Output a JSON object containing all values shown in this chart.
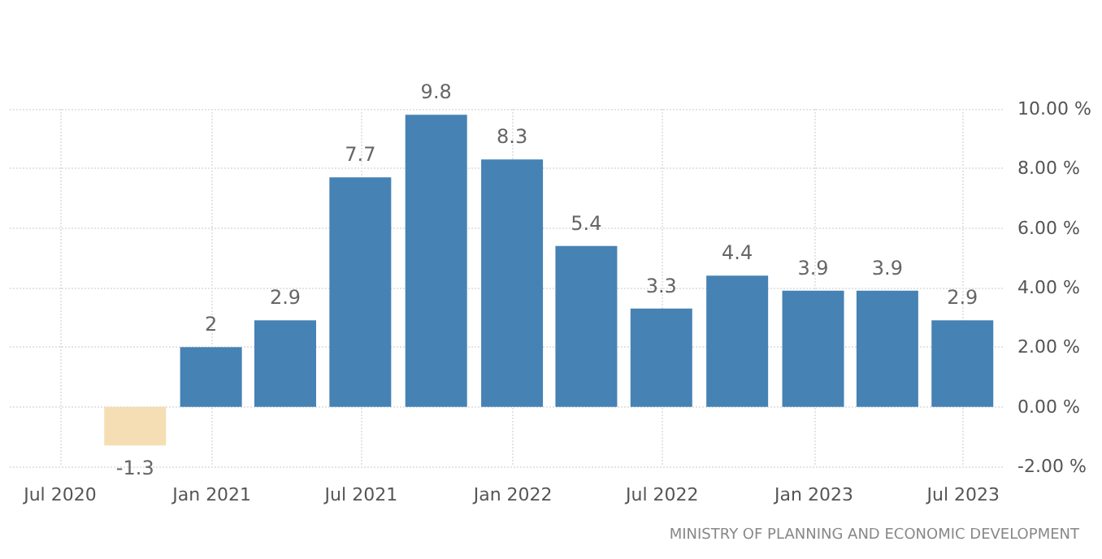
{
  "chart_data": {
    "type": "bar",
    "x": [
      "2020-09-30",
      "2020-12-31",
      "2021-03-31",
      "2021-06-30",
      "2021-09-30",
      "2021-12-31",
      "2022-03-31",
      "2022-06-30",
      "2022-09-30",
      "2022-12-31",
      "2023-03-31",
      "2023-06-30"
    ],
    "values": [
      -1.3,
      2,
      2.9,
      7.7,
      9.8,
      8.3,
      5.4,
      3.3,
      4.4,
      3.9,
      3.9,
      2.9
    ],
    "colors": [
      "#f5deb3",
      "#4682b4",
      "#4682b4",
      "#4682b4",
      "#4682b4",
      "#4682b4",
      "#4682b4",
      "#4682b4",
      "#4682b4",
      "#4682b4",
      "#4682b4",
      "#4682b4"
    ],
    "data_labels": true,
    "xlim": [
      "2020-05-01",
      "2023-08-20"
    ],
    "xticks": [
      {
        "value": "2020-07-01",
        "label": "Jul 2020"
      },
      {
        "value": "2021-01-01",
        "label": "Jan 2021"
      },
      {
        "value": "2021-07-01",
        "label": "Jul 2021"
      },
      {
        "value": "2022-01-01",
        "label": "Jan 2022"
      },
      {
        "value": "2022-07-01",
        "label": "Jul 2022"
      },
      {
        "value": "2023-01-01",
        "label": "Jan 2023"
      },
      {
        "value": "2023-07-01",
        "label": "Jul 2023"
      }
    ],
    "ylim": [
      -2,
      10
    ],
    "yticks": [
      {
        "value": -2,
        "label": "-2.00 %"
      },
      {
        "value": 0,
        "label": "0.00 %"
      },
      {
        "value": 2,
        "label": "2.00 %"
      },
      {
        "value": 4,
        "label": "4.00 %"
      },
      {
        "value": 6,
        "label": "6.00 %"
      },
      {
        "value": 8,
        "label": "8.00 %"
      },
      {
        "value": 10,
        "label": "10.00 %"
      }
    ],
    "grid": true,
    "annotations": [
      "MINISTRY OF PLANNING AND ECONOMIC DEVELOPMENT"
    ]
  }
}
